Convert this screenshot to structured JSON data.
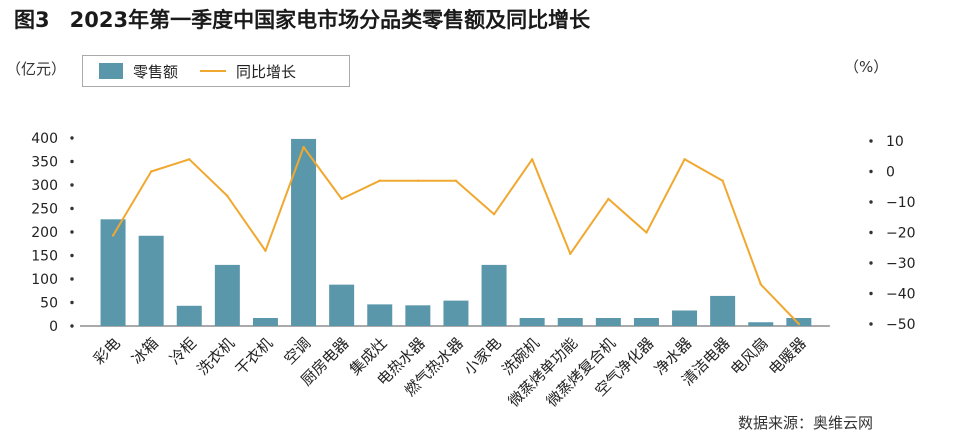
{
  "figure": {
    "number": "图3",
    "title": "2023年第一季度中国家电市场分品类零售额及同比增长",
    "unit_left": "（亿元）",
    "unit_right": "（%）",
    "source": "数据来源：奥维云网"
  },
  "colors": {
    "bar": "#5a97ab",
    "line": "#f0a830",
    "axis": "#555555"
  },
  "chart_data": {
    "type": "bar",
    "title": "2023年第一季度中国家电市场分品类零售额及同比增长",
    "categories": [
      "彩电",
      "冰箱",
      "冷柜",
      "洗衣机",
      "干衣机",
      "空调",
      "厨房电器",
      "集成灶",
      "电热水器",
      "燃气热水器",
      "小家电",
      "洗碗机",
      "微蒸烤单功能",
      "微蒸烤复合机",
      "空气净化器",
      "净水器",
      "清洁电器",
      "电风扇",
      "电暖器"
    ],
    "series": [
      {
        "name": "零售额",
        "type": "bar",
        "axis": "left",
        "values": [
          227,
          192,
          43,
          130,
          17,
          398,
          88,
          46,
          44,
          54,
          130,
          17,
          17,
          17,
          17,
          33,
          64,
          8,
          17
        ]
      },
      {
        "name": "同比增长",
        "type": "line",
        "axis": "right",
        "values": [
          -21,
          0,
          4,
          -8,
          -26,
          8,
          -9,
          -3,
          -3,
          -3,
          -14,
          4,
          -27,
          -9,
          -20,
          4,
          -3,
          -37,
          -50
        ]
      }
    ],
    "y_left": {
      "ylim": [
        0,
        400
      ],
      "ticks": [
        "0",
        "50",
        "100",
        "150",
        "200",
        "250",
        "300",
        "350",
        "400"
      ]
    },
    "y_right": {
      "ylim": [
        -50,
        10
      ],
      "ticks": [
        "10",
        "0",
        "-10",
        "-20",
        "-30",
        "-40",
        "-50"
      ]
    },
    "legend": "top-left",
    "grid": false
  }
}
